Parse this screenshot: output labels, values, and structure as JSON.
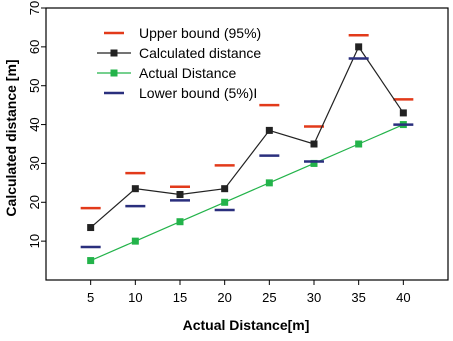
{
  "chart_data": {
    "type": "line",
    "title": "",
    "xlabel": "Actual Distance[m]",
    "ylabel": "Calculated distance [m]",
    "x": [
      5,
      10,
      15,
      20,
      25,
      30,
      35,
      40
    ],
    "xlim": [
      0,
      45
    ],
    "ylim": [
      0,
      70
    ],
    "xticks": [
      "5",
      "10",
      "15",
      "20",
      "25",
      "30",
      "35",
      "40"
    ],
    "yticks": [
      "10",
      "20",
      "30",
      "40",
      "50",
      "60",
      "70"
    ],
    "grid": false,
    "legend_position": "top-left",
    "series": [
      {
        "name": "Upper bound (95%)",
        "kind": "dash-marker",
        "color": "#e23a1a",
        "values": [
          18.5,
          27.5,
          24,
          29.5,
          45,
          39.5,
          63,
          46.5
        ]
      },
      {
        "name": "Calculated distance",
        "kind": "line-square",
        "color": "#222222",
        "values": [
          13.5,
          23.5,
          22,
          23.5,
          38.5,
          35,
          60,
          43
        ]
      },
      {
        "name": "Actual Distance",
        "kind": "line-square",
        "color": "#23b34a",
        "values": [
          5,
          10,
          15,
          20,
          25,
          30,
          35,
          40
        ]
      },
      {
        "name": "Lower bound (5%)I",
        "kind": "dash-marker",
        "color": "#2a2f7d",
        "values": [
          8.5,
          19,
          20.5,
          18,
          32,
          30.5,
          57,
          40
        ]
      }
    ]
  }
}
